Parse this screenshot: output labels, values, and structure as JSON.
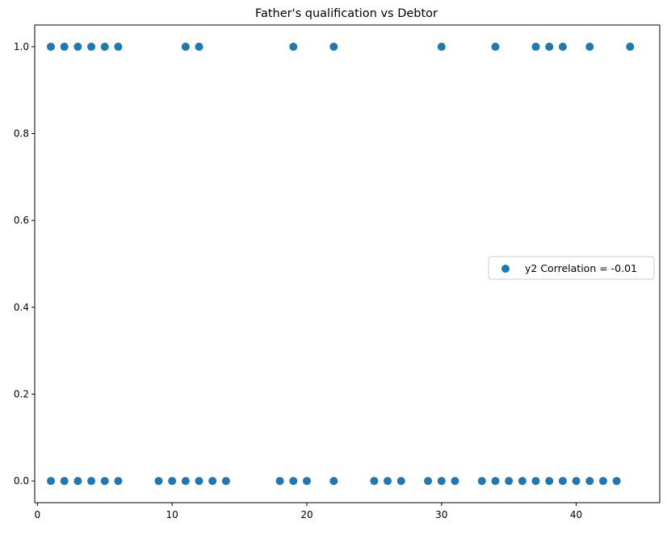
{
  "chart_data": {
    "type": "scatter",
    "title": "Father's qualification vs Debtor",
    "xlabel": "",
    "ylabel": "",
    "xlim": [
      -0.2,
      46.2
    ],
    "ylim": [
      -0.05,
      1.05
    ],
    "x_ticks": [
      0,
      10,
      20,
      30,
      40
    ],
    "y_ticks": [
      0.0,
      0.2,
      0.4,
      0.6,
      0.8,
      1.0
    ],
    "x_tick_labels": [
      "0",
      "10",
      "20",
      "30",
      "40"
    ],
    "y_tick_labels": [
      "0.0",
      "0.2",
      "0.4",
      "0.6",
      "0.8",
      "1.0"
    ],
    "grid": false,
    "legend_position": "center-right",
    "marker_color": "#1f77b4",
    "series": [
      {
        "name": "y2 Correlation = -0.01",
        "points": [
          [
            1,
            1
          ],
          [
            2,
            1
          ],
          [
            3,
            1
          ],
          [
            4,
            1
          ],
          [
            5,
            1
          ],
          [
            6,
            1
          ],
          [
            11,
            1
          ],
          [
            12,
            1
          ],
          [
            19,
            1
          ],
          [
            22,
            1
          ],
          [
            30,
            1
          ],
          [
            34,
            1
          ],
          [
            37,
            1
          ],
          [
            38,
            1
          ],
          [
            39,
            1
          ],
          [
            41,
            1
          ],
          [
            44,
            1
          ],
          [
            1,
            0
          ],
          [
            2,
            0
          ],
          [
            3,
            0
          ],
          [
            4,
            0
          ],
          [
            5,
            0
          ],
          [
            6,
            0
          ],
          [
            9,
            0
          ],
          [
            10,
            0
          ],
          [
            11,
            0
          ],
          [
            12,
            0
          ],
          [
            13,
            0
          ],
          [
            14,
            0
          ],
          [
            18,
            0
          ],
          [
            19,
            0
          ],
          [
            20,
            0
          ],
          [
            22,
            0
          ],
          [
            25,
            0
          ],
          [
            26,
            0
          ],
          [
            27,
            0
          ],
          [
            29,
            0
          ],
          [
            30,
            0
          ],
          [
            31,
            0
          ],
          [
            33,
            0
          ],
          [
            34,
            0
          ],
          [
            35,
            0
          ],
          [
            36,
            0
          ],
          [
            37,
            0
          ],
          [
            38,
            0
          ],
          [
            39,
            0
          ],
          [
            40,
            0
          ],
          [
            41,
            0
          ],
          [
            42,
            0
          ],
          [
            43,
            0
          ]
        ]
      }
    ]
  }
}
